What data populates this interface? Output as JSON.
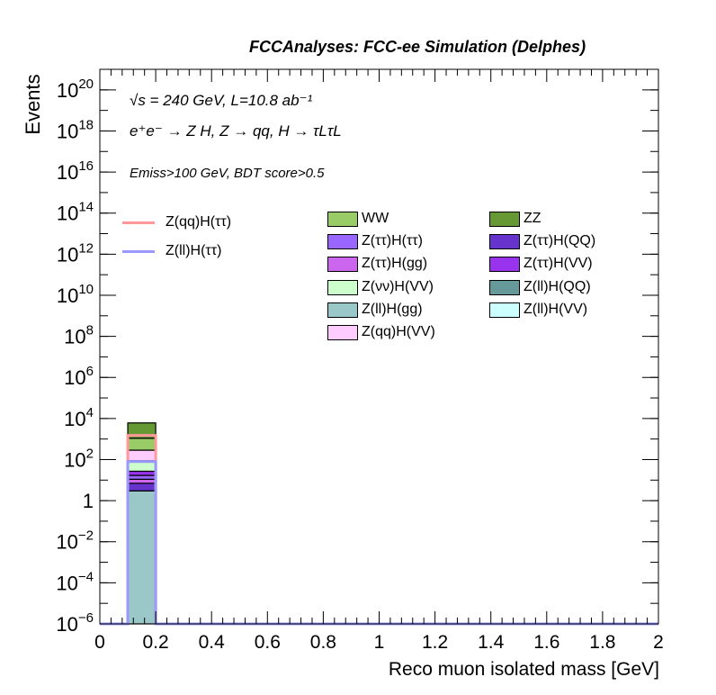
{
  "header": {
    "title": "FCCAnalyses: FCC-ee Simulation (Delphes)"
  },
  "annotations": {
    "energy_lumi": "√s = 240 GeV, L=10.8 ab⁻¹",
    "process": "e⁺e⁻ → Z H, Z → qq, H → τLτL",
    "selection": "Emiss>100 GeV, BDT score>0.5"
  },
  "chart_data": {
    "type": "bar",
    "stacked": true,
    "xlabel": "Reco muon isolated mass [GeV]",
    "ylabel": "Events",
    "xlim": [
      0,
      2
    ],
    "ylim": [
      1e-06,
      1e+21
    ],
    "log_y": true,
    "x_ticks": [
      "0",
      "0.2",
      "0.4",
      "0.6",
      "0.8",
      "1",
      "1.2",
      "1.4",
      "1.6",
      "1.8",
      "2"
    ],
    "y_ticks": [
      {
        "base": "10",
        "exp": "−6",
        "value": 1e-06
      },
      {
        "base": "10",
        "exp": "−4",
        "value": 0.0001
      },
      {
        "base": "10",
        "exp": "−2",
        "value": 0.01
      },
      {
        "base": "1",
        "exp": "",
        "value": 1
      },
      {
        "base": "10",
        "exp": "2",
        "value": 100.0
      },
      {
        "base": "10",
        "exp": "4",
        "value": 10000.0
      },
      {
        "base": "10",
        "exp": "6",
        "value": 1000000.0
      },
      {
        "base": "10",
        "exp": "8",
        "value": 100000000.0
      },
      {
        "base": "10",
        "exp": "10",
        "value": 10000000000.0
      },
      {
        "base": "10",
        "exp": "12",
        "value": 1000000000000.0
      },
      {
        "base": "10",
        "exp": "14",
        "value": 100000000000000.0
      },
      {
        "base": "10",
        "exp": "16",
        "value": 1e+16
      },
      {
        "base": "10",
        "exp": "18",
        "value": 1e+18
      },
      {
        "base": "10",
        "exp": "20",
        "value": 1e+20
      }
    ],
    "bin": [
      0.1,
      0.2
    ],
    "stack": [
      {
        "name": "Z(ll)H(gg)",
        "color": "#9ac7c7",
        "value": 3.0
      },
      {
        "name": "Z(ττ)H(QQ)",
        "color": "#6633cc",
        "value": 4.0
      },
      {
        "name": "Z(ττ)H(gg)",
        "color": "#cc66ee",
        "value": 4.0
      },
      {
        "name": "Z(ττ)H(ττ)",
        "color": "#9966ff",
        "value": 6.0
      },
      {
        "name": "Z(ττ)H(VV)",
        "color": "#9933ee",
        "value": 10.0
      },
      {
        "name": "Z(νν)H(VV)",
        "color": "#ccffcc",
        "value": 60.0
      },
      {
        "name": "Z(qq)H(VV)",
        "color": "#ffccff",
        "value": 200.0
      },
      {
        "name": "WW",
        "color": "#99cc66",
        "value": 800.0
      },
      {
        "name": "ZZ",
        "color": "#669933",
        "value": 5000.0
      }
    ],
    "signals": [
      {
        "name": "Z(qq)H(ττ)",
        "color": "#ff9999",
        "value": 1500.0
      },
      {
        "name": "Z(ll)H(ττ)",
        "color": "#9999ff",
        "value": 80.0
      }
    ]
  },
  "legend": {
    "signals": [
      {
        "label": "Z(qq)H(ττ)",
        "color": "#ff9999"
      },
      {
        "label": "Z(ll)H(ττ)",
        "color": "#9999ff"
      }
    ],
    "col1": [
      {
        "label": "WW",
        "color": "#99cc66"
      },
      {
        "label": "Z(ττ)H(ττ)",
        "color": "#9966ff"
      },
      {
        "label": "Z(ττ)H(gg)",
        "color": "#cc66ee"
      },
      {
        "label": "Z(νν)H(VV)",
        "color": "#ccffcc"
      },
      {
        "label": "Z(ll)H(gg)",
        "color": "#9ac7c7"
      },
      {
        "label": "Z(qq)H(VV)",
        "color": "#ffccff"
      }
    ],
    "col2": [
      {
        "label": "ZZ",
        "color": "#669933"
      },
      {
        "label": "Z(ττ)H(QQ)",
        "color": "#6633cc"
      },
      {
        "label": "Z(ττ)H(VV)",
        "color": "#9933ee"
      },
      {
        "label": "Z(ll)H(QQ)",
        "color": "#669999"
      },
      {
        "label": "Z(ll)H(VV)",
        "color": "#ccffff"
      }
    ]
  }
}
